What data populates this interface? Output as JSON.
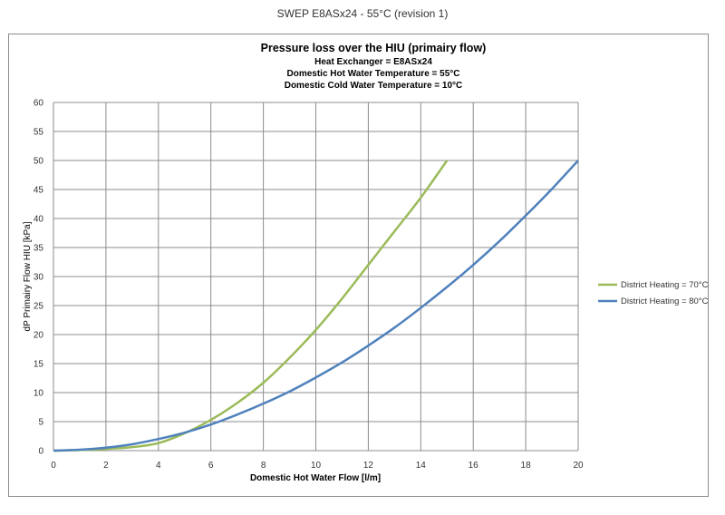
{
  "page_title": "SWEP E8ASx24 - 55°C (revision 1)",
  "chart_data": {
    "type": "line",
    "title": "Pressure loss over the HIU (primairy flow)",
    "subtitles": [
      "Heat Exchanger = E8ASx24",
      "Domestic Hot Water Temperature = 55°C",
      "Domestic Cold Water Temperature = 10°C"
    ],
    "xlabel": "Domestic Hot Water Flow [l/m]",
    "ylabel": "dP Primairy Flow HIU [kPa]",
    "xlim": [
      0,
      20
    ],
    "ylim": [
      0,
      60
    ],
    "x_ticks": [
      "0",
      "2",
      "4",
      "6",
      "8",
      "10",
      "12",
      "14",
      "16",
      "18",
      "20"
    ],
    "y_ticks": [
      "0",
      "5",
      "10",
      "15",
      "20",
      "25",
      "30",
      "35",
      "40",
      "45",
      "50",
      "55",
      "60"
    ],
    "grid": true,
    "legend_position": "right",
    "series": [
      {
        "name": "District Heating = 70°C",
        "color": "#9bbb59",
        "x": [
          0,
          1,
          2,
          3,
          4,
          5,
          6,
          7,
          8,
          9,
          10,
          11,
          12,
          13,
          14,
          15
        ],
        "y": [
          0,
          0.1,
          0.3,
          0.6,
          1.3,
          3.0,
          5.3,
          8.2,
          11.7,
          16.0,
          20.8,
          26.2,
          32.0,
          37.8,
          43.6,
          50.0
        ]
      },
      {
        "name": "District Heating = 80°C",
        "color": "#4f81bd",
        "x": [
          0,
          1,
          2,
          3,
          4,
          5,
          6,
          7,
          8,
          9,
          10,
          11,
          12,
          13,
          14,
          15,
          16,
          17,
          18,
          19,
          20
        ],
        "y": [
          0,
          0.15,
          0.5,
          1.1,
          2.0,
          3.1,
          4.5,
          6.2,
          8.1,
          10.2,
          12.6,
          15.2,
          18.1,
          21.2,
          24.6,
          28.2,
          32.0,
          36.1,
          40.5,
          45.1,
          50.0
        ]
      }
    ]
  }
}
